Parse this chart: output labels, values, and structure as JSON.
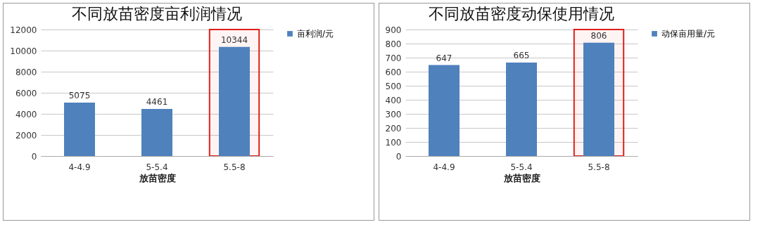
{
  "chart_data": [
    {
      "type": "bar",
      "title": "不同放苗密度亩利润情况",
      "xlabel": "放苗密度",
      "categories": [
        "4-4.9",
        "5-5.4",
        "5.5-8"
      ],
      "series": [
        {
          "name": "亩利润/元",
          "color": "#4f81bd",
          "values": [
            5075,
            4461,
            10344
          ]
        }
      ],
      "ylim": [
        0,
        12000
      ],
      "yticks": [
        0,
        2000,
        4000,
        6000,
        8000,
        10000,
        12000
      ],
      "grid": "y",
      "legend": "right",
      "data_labels": true,
      "bands": [
        {
          "axis": "x",
          "from": "5.5-8",
          "to": "5.5-8",
          "color": "#e0201b"
        }
      ]
    },
    {
      "type": "bar",
      "title": "不同放苗密度动保使用情况",
      "xlabel": "放苗密度",
      "categories": [
        "4-4.9",
        "5-5.4",
        "5.5-8"
      ],
      "series": [
        {
          "name": "动保亩用量/元",
          "color": "#4f81bd",
          "values": [
            647,
            665,
            806
          ]
        }
      ],
      "ylim": [
        0,
        900
      ],
      "yticks": [
        0,
        100,
        200,
        300,
        400,
        500,
        600,
        700,
        800,
        900
      ],
      "grid": "y",
      "legend": "right",
      "data_labels": true,
      "bands": [
        {
          "axis": "x",
          "from": "5.5-8",
          "to": "5.5-8",
          "color": "#e0201b"
        }
      ]
    }
  ]
}
